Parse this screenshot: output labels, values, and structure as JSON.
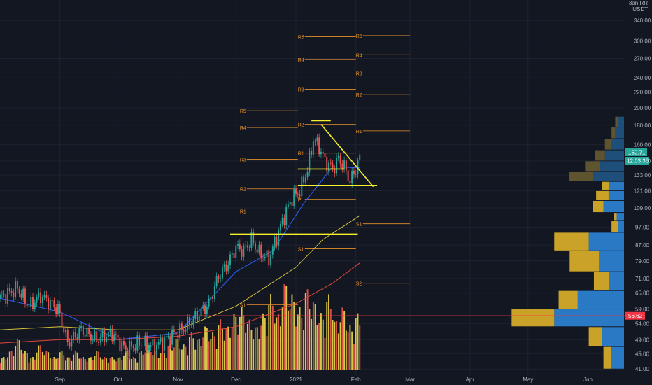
{
  "chart_data": {
    "type": "candlestick",
    "currency_top": "3an RR",
    "currency": "USDT",
    "y_axis": {
      "log": true,
      "ylim": [
        39.5,
        372
      ],
      "ticks": [
        "340.00",
        "300.00",
        "270.00",
        "240.00",
        "220.00",
        "200.00",
        "180.00",
        "160.00",
        "145.00",
        "133.00",
        "121.00",
        "109.00",
        "97.00",
        "87.00",
        "79.00",
        "71.00",
        "65.00",
        "59.00",
        "54.00",
        "49.00",
        "45.00",
        "41.00"
      ]
    },
    "x_axis": {
      "start": "2020-08-01",
      "end": "2021-06-20",
      "ticks": [
        {
          "label": "Sep",
          "date": "2020-09-01"
        },
        {
          "label": "Oct",
          "date": "2020-10-01"
        },
        {
          "label": "Nov",
          "date": "2020-11-01"
        },
        {
          "label": "Dec",
          "date": "2020-12-01"
        },
        {
          "label": "2021",
          "date": "2021-01-01"
        },
        {
          "label": "Feb",
          "date": "2021-02-01"
        },
        {
          "label": "Mar",
          "date": "2021-03-01"
        },
        {
          "label": "Apr",
          "date": "2021-04-01"
        },
        {
          "label": "May",
          "date": "2021-05-01"
        },
        {
          "label": "Jun",
          "date": "2021-06-01"
        }
      ]
    },
    "price_path": [
      [
        "2020-08-01",
        63
      ],
      [
        "2020-08-10",
        67
      ],
      [
        "2020-08-16",
        60
      ],
      [
        "2020-08-22",
        64
      ],
      [
        "2020-08-31",
        59
      ],
      [
        "2020-09-05",
        48
      ],
      [
        "2020-09-12",
        52
      ],
      [
        "2020-09-20",
        49
      ],
      [
        "2020-09-28",
        51
      ],
      [
        "2020-10-05",
        46
      ],
      [
        "2020-10-12",
        48
      ],
      [
        "2020-10-20",
        47
      ],
      [
        "2020-10-28",
        50
      ],
      [
        "2020-11-03",
        52
      ],
      [
        "2020-11-10",
        56
      ],
      [
        "2020-11-17",
        61
      ],
      [
        "2020-11-22",
        72
      ],
      [
        "2020-11-27",
        78
      ],
      [
        "2020-12-01",
        86
      ],
      [
        "2020-12-05",
        84
      ],
      [
        "2020-12-09",
        90
      ],
      [
        "2020-12-13",
        83
      ],
      [
        "2020-12-18",
        80
      ],
      [
        "2020-12-22",
        91
      ],
      [
        "2020-12-26",
        104
      ],
      [
        "2020-12-30",
        116
      ],
      [
        "2021-01-03",
        121
      ],
      [
        "2021-01-07",
        138
      ],
      [
        "2021-01-10",
        165
      ],
      [
        "2021-01-13",
        158
      ],
      [
        "2021-01-16",
        145
      ],
      [
        "2021-01-20",
        138
      ],
      [
        "2021-01-23",
        147
      ],
      [
        "2021-01-26",
        140
      ],
      [
        "2021-01-29",
        128
      ],
      [
        "2021-02-01",
        138
      ],
      [
        "2021-02-03",
        150.71
      ]
    ],
    "last_price": "150.71",
    "countdown": "12:03:36",
    "support_price": "56.62",
    "support_level": 56.62,
    "ma_fast": [
      [
        "2020-08-01",
        63
      ],
      [
        "2020-09-01",
        58
      ],
      [
        "2020-10-01",
        49
      ],
      [
        "2020-11-01",
        51
      ],
      [
        "2020-12-01",
        74
      ],
      [
        "2020-12-20",
        84
      ],
      [
        "2021-01-05",
        112
      ],
      [
        "2021-01-20",
        140
      ],
      [
        "2021-02-03",
        139
      ]
    ],
    "ma_mid": [
      [
        "2020-08-01",
        52
      ],
      [
        "2020-09-01",
        53
      ],
      [
        "2020-10-01",
        52
      ],
      [
        "2020-11-01",
        52
      ],
      [
        "2020-12-01",
        60
      ],
      [
        "2021-01-01",
        76
      ],
      [
        "2021-01-15",
        90
      ],
      [
        "2021-02-03",
        104
      ]
    ],
    "ma_slow": [
      [
        "2020-08-01",
        48
      ],
      [
        "2020-09-01",
        49
      ],
      [
        "2020-10-01",
        49
      ],
      [
        "2020-11-01",
        50
      ],
      [
        "2020-12-01",
        53
      ],
      [
        "2021-01-01",
        61
      ],
      [
        "2021-01-20",
        69
      ],
      [
        "2021-02-03",
        78
      ]
    ],
    "volume_series": [
      2,
      3,
      5,
      3,
      2,
      4,
      3,
      2,
      3,
      2,
      3,
      2,
      2,
      3,
      2,
      2,
      2,
      3,
      2,
      3,
      4,
      3,
      3,
      4,
      5,
      4,
      6,
      5,
      7,
      6,
      8,
      7,
      9,
      10,
      8,
      7,
      9,
      12,
      9,
      14,
      12,
      10,
      13,
      11,
      9,
      12,
      8,
      10,
      7,
      9
    ],
    "pivot_sets": [
      {
        "label_x": "2020-12-03",
        "start": "2020-12-03",
        "end": "2021-01-02",
        "levels": [
          {
            "label": "R5",
            "price": 196.6
          },
          {
            "label": "R4",
            "price": 177.6
          },
          {
            "label": "R3",
            "price": 146.4
          },
          {
            "label": "R2",
            "price": 122.4
          },
          {
            "label": "R1",
            "price": 106.9
          },
          {
            "label": "S1",
            "price": 60.5
          }
        ]
      },
      {
        "label_x": "2021-01-02",
        "start": "2021-01-02",
        "end": "2021-02-01",
        "levels": [
          {
            "label": "R5",
            "price": 308
          },
          {
            "label": "R4",
            "price": 268
          },
          {
            "label": "R3",
            "price": 224
          },
          {
            "label": "R2",
            "price": 181
          },
          {
            "label": "R1",
            "price": 152
          },
          {
            "label": "P",
            "price": 115
          },
          {
            "label": "S1",
            "price": 85
          }
        ]
      },
      {
        "label_x": "2021-02-01",
        "start": "2021-02-01",
        "end": "2021-03-01",
        "levels": [
          {
            "label": "R5",
            "price": 310
          },
          {
            "label": "R4",
            "price": 276
          },
          {
            "label": "R3",
            "price": 247
          },
          {
            "label": "R2",
            "price": 217
          },
          {
            "label": "R1",
            "price": 174
          },
          {
            "label": "S1",
            "price": 99
          },
          {
            "label": "S2",
            "price": 69
          }
        ]
      }
    ],
    "trendlines": [
      {
        "from": [
          "2021-01-09",
          185
        ],
        "to": [
          "2021-01-19",
          185
        ]
      },
      {
        "from": [
          "2021-01-14",
          181
        ],
        "to": [
          "2021-02-10",
          124
        ]
      },
      {
        "from": [
          "2021-01-02",
          125
        ],
        "to": [
          "2021-02-12",
          125
        ]
      },
      {
        "from": [
          "2020-11-28",
          93
        ],
        "to": [
          "2021-02-02",
          93
        ]
      },
      {
        "from": [
          "2021-01-02",
          138
        ],
        "to": [
          "2021-01-26",
          138
        ]
      }
    ],
    "volume_profile": [
      {
        "low": 41,
        "high": 47,
        "up": 10,
        "down": 18
      },
      {
        "low": 47,
        "high": 53,
        "up": 18,
        "down": 30
      },
      {
        "low": 53,
        "high": 59,
        "up": 58,
        "down": 95
      },
      {
        "low": 59,
        "high": 66,
        "up": 26,
        "down": 63
      },
      {
        "low": 66,
        "high": 74,
        "up": 21,
        "down": 20
      },
      {
        "low": 74,
        "high": 84,
        "up": 40,
        "down": 34
      },
      {
        "low": 84,
        "high": 94,
        "up": 47,
        "down": 48
      },
      {
        "low": 94,
        "high": 101,
        "up": 9,
        "down": 8
      },
      {
        "low": 101,
        "high": 106,
        "up": 4,
        "down": 10
      },
      {
        "low": 106,
        "high": 114,
        "up": 14,
        "down": 28
      },
      {
        "low": 114,
        "high": 121,
        "up": 17,
        "down": 21
      },
      {
        "low": 121,
        "high": 128,
        "up": 10,
        "down": 20
      },
      {
        "low": 128,
        "high": 136,
        "up": 33,
        "down": 42
      },
      {
        "low": 136,
        "high": 145,
        "up": 20,
        "down": 33
      },
      {
        "low": 145,
        "high": 155,
        "up": 14,
        "down": 26
      },
      {
        "low": 155,
        "high": 166,
        "up": 8,
        "down": 18
      },
      {
        "low": 166,
        "high": 178,
        "up": 5,
        "down": 12
      },
      {
        "low": 178,
        "high": 190,
        "up": 4,
        "down": 8
      }
    ]
  }
}
